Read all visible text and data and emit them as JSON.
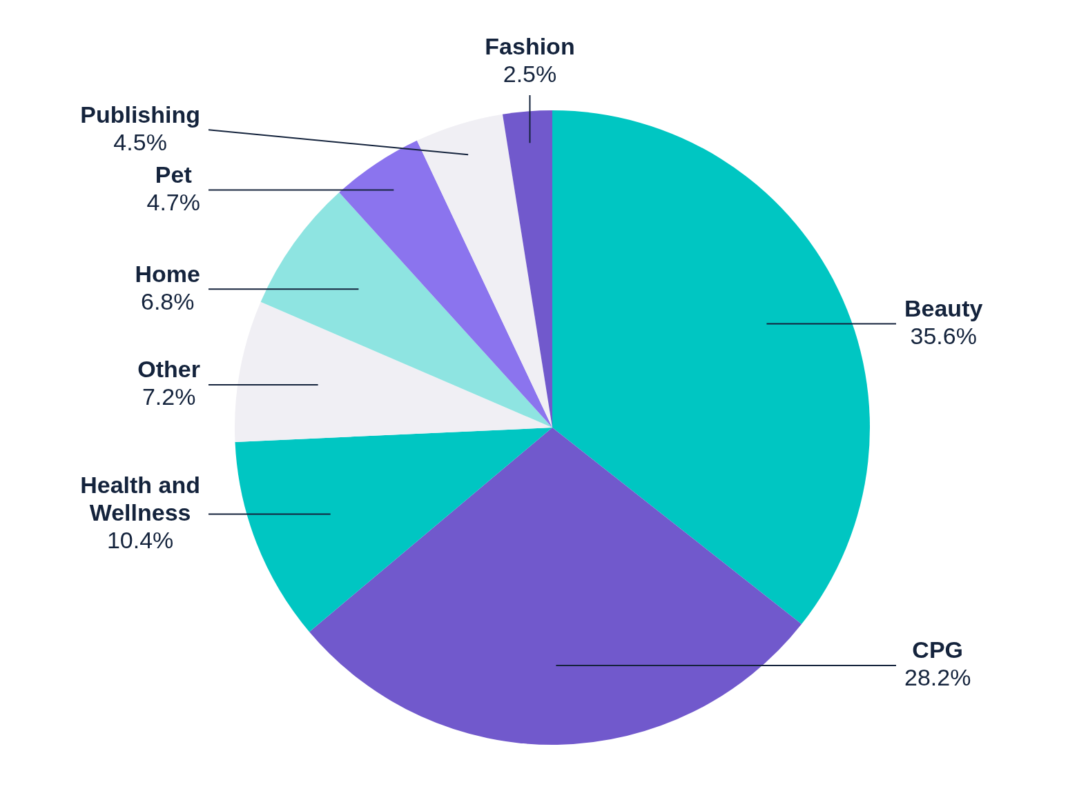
{
  "chart_data": {
    "type": "pie",
    "categories": [
      "Beauty",
      "CPG",
      "Health and Wellness",
      "Other",
      "Home",
      "Pet",
      "Publishing",
      "Fashion"
    ],
    "values": [
      35.6,
      28.2,
      10.4,
      7.2,
      6.8,
      4.7,
      4.5,
      2.5
    ],
    "colors": [
      "#00c6c2",
      "#7159cc",
      "#00c6c2",
      "#f0eff4",
      "#8ee4e1",
      "#8b74ee",
      "#f0eff4",
      "#7159cc"
    ],
    "value_labels": [
      "35.6%",
      "28.2%",
      "10.4%",
      "7.2%",
      "6.8%",
      "4.7%",
      "4.5%",
      "2.5%"
    ]
  }
}
